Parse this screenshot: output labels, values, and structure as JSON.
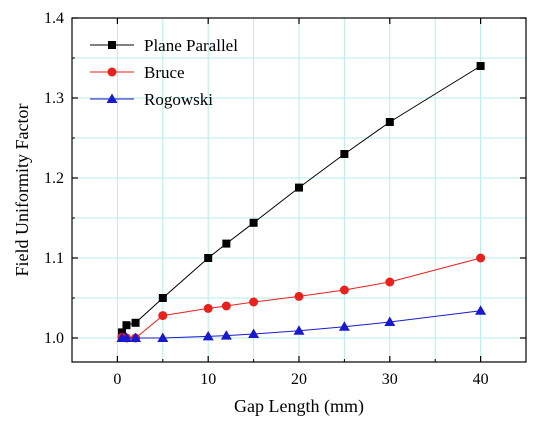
{
  "chart_data": {
    "type": "line",
    "title": "",
    "xlabel": "Gap Length (mm)",
    "ylabel": "Field Uniformity Factor",
    "xlim": [
      -5,
      45
    ],
    "ylim": [
      0.97,
      1.4
    ],
    "xticks": [
      0,
      10,
      20,
      30,
      40
    ],
    "yticks": [
      1.0,
      1.1,
      1.2,
      1.3,
      1.4
    ],
    "ytick_labels": [
      "1.0",
      "1.1",
      "1.2",
      "1.3",
      "1.4"
    ],
    "grid": true,
    "legend": "top-left",
    "series": [
      {
        "name": "Plane Parallel",
        "color": "#000000",
        "marker": "square",
        "x": [
          0.5,
          1,
          2,
          5,
          10,
          12,
          15,
          20,
          25,
          30,
          40
        ],
        "y": [
          1.007,
          1.016,
          1.019,
          1.05,
          1.1,
          1.118,
          1.144,
          1.188,
          1.23,
          1.27,
          1.34
        ]
      },
      {
        "name": "Bruce",
        "color": "#e8211c",
        "marker": "circle",
        "x": [
          0.5,
          1,
          2,
          5,
          10,
          12,
          15,
          20,
          25,
          30,
          40
        ],
        "y": [
          1.001,
          1.0,
          1.0,
          1.028,
          1.037,
          1.04,
          1.045,
          1.052,
          1.06,
          1.07,
          1.1
        ]
      },
      {
        "name": "Rogowski",
        "color": "#1a1acd",
        "marker": "triangle",
        "x": [
          0.5,
          1,
          2,
          5,
          10,
          12,
          15,
          20,
          25,
          30,
          40
        ],
        "y": [
          1.0,
          1.0,
          1.0,
          1.0,
          1.002,
          1.003,
          1.005,
          1.009,
          1.014,
          1.02,
          1.034
        ]
      }
    ]
  }
}
